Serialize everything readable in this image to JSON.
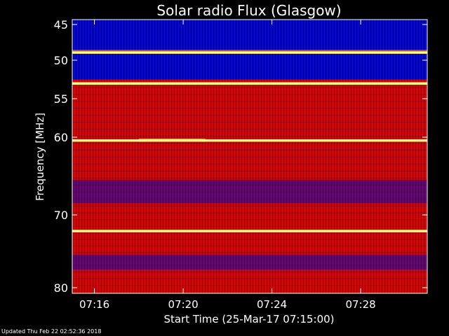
{
  "chart_data": {
    "type": "heatmap",
    "title": "Solar radio Flux (Glasgow)",
    "xlabel": "Start Time (25-Mar-17 07:15:00)",
    "ylabel": "Frequency [MHz]",
    "x_range": [
      "07:15:00",
      "07:31:00"
    ],
    "x_ticks": [
      "07:16",
      "07:20",
      "07:24",
      "07:28"
    ],
    "y_range": [
      45,
      80
    ],
    "y_ticks": [
      45,
      50,
      55,
      60,
      70,
      80
    ],
    "y_scale": "nonlinear",
    "colors": {
      "low": "#0000c8",
      "mid": "#d00000",
      "high": "#ffff80"
    },
    "bright_bands_mhz": [
      48.9,
      53.0,
      60.4,
      72.2
    ],
    "blue_bands_mhz": [
      [
        45,
        52.5
      ],
      [
        65.5,
        68.5
      ],
      [
        75.5,
        77.5
      ]
    ],
    "burst": {
      "time": "07:18 - 07:21",
      "frequency_mhz": 60.4
    }
  },
  "footer": {
    "updated": "Updated Thu Feb 22 02:52:36 2018"
  }
}
